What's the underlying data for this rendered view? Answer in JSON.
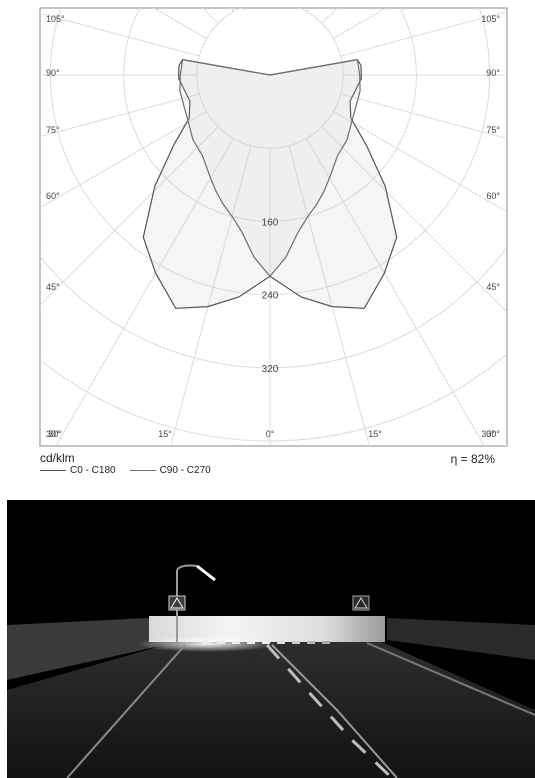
{
  "chart_data": {
    "type": "polar",
    "radial_unit": "cd/klm",
    "radial_ticks": [
      160,
      240,
      320
    ],
    "angle_labels_left": [
      "105°",
      "90°",
      "75°",
      "60°",
      "45°",
      "30°"
    ],
    "angle_labels_right": [
      "105°",
      "90°",
      "75°",
      "60°",
      "45°",
      "30°"
    ],
    "angle_labels_bottom": [
      "30°",
      "15°",
      "0°",
      "15°",
      "30°"
    ],
    "series": [
      {
        "name": "C0 - C180",
        "color": "#555555",
        "points": [
          [
            0,
            220
          ],
          [
            8,
            245
          ],
          [
            15,
            262
          ],
          [
            22,
            275
          ],
          [
            30,
            250
          ],
          [
            38,
            225
          ],
          [
            46,
            175
          ],
          [
            54,
            130
          ],
          [
            62,
            100
          ],
          [
            72,
            92
          ],
          [
            80,
            95
          ],
          [
            88,
            100
          ],
          [
            96,
            100
          ],
          [
            100,
            97
          ],
          [
            180,
            0
          ]
        ]
      },
      {
        "name": "C90 - C270",
        "color": "#6e6e6e",
        "points": [
          [
            0,
            220
          ],
          [
            5,
            200
          ],
          [
            10,
            175
          ],
          [
            15,
            160
          ],
          [
            20,
            150
          ],
          [
            25,
            140
          ],
          [
            30,
            130
          ],
          [
            40,
            115
          ],
          [
            50,
            110
          ],
          [
            60,
            103
          ],
          [
            70,
            100
          ],
          [
            80,
            100
          ],
          [
            90,
            98
          ],
          [
            96,
            97
          ],
          [
            100,
            97
          ],
          [
            180,
            0
          ]
        ]
      }
    ],
    "efficiency": "η = 82%"
  },
  "scene": {
    "sign_icon": "pedestrian-crossing-icon",
    "accent_colors": {
      "sky": "#000000",
      "wall": "#e6e6e6",
      "road": "#1c1c1c"
    }
  }
}
